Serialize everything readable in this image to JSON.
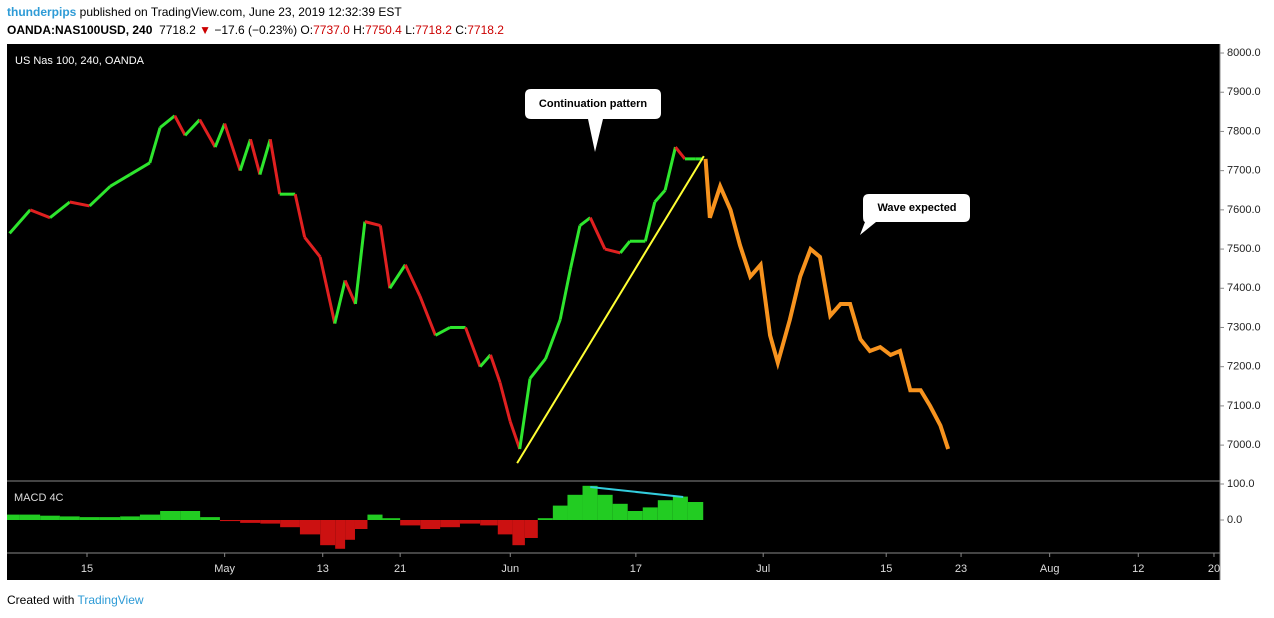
{
  "header": {
    "author": "thunderpips",
    "published": "published on TradingView.com, June 23, 2019 12:32:39 EST",
    "symbol": "OANDA:NAS100USD, 240",
    "last": "7718.2",
    "arrow": "▼",
    "change": "−17.6 (−0.23%)",
    "open_label": "O:",
    "open": "7737.0",
    "high_label": "H:",
    "high": "7750.4",
    "low_label": "L:",
    "low": "7718.2",
    "close_label": "C:",
    "close": "7718.2"
  },
  "footer": {
    "created": "Created with",
    "brand": "TradingView"
  },
  "chart_data": [
    {
      "type": "line",
      "title": "US Nas 100, 240, OANDA",
      "xlim": [
        -9.3,
        131.7
      ],
      "ylim": [
        6911,
        8023
      ],
      "xticks": [
        {
          "value": 0,
          "label": "15"
        },
        {
          "value": 16,
          "label": "May"
        },
        {
          "value": 27.4,
          "label": "13"
        },
        {
          "value": 36.4,
          "label": "21"
        },
        {
          "value": 49.2,
          "label": "Jun"
        },
        {
          "value": 63.8,
          "label": "17"
        },
        {
          "value": 78.6,
          "label": "Jul"
        },
        {
          "value": 92.9,
          "label": "15"
        },
        {
          "value": 101.6,
          "label": "23"
        },
        {
          "value": 111.9,
          "label": "Aug"
        },
        {
          "value": 122.2,
          "label": "12"
        },
        {
          "value": 131,
          "label": "20"
        }
      ],
      "yticks": [
        {
          "value": 7000,
          "label": "7000.0"
        },
        {
          "value": 7100,
          "label": "7100.0"
        },
        {
          "value": 7200,
          "label": "7200.0"
        },
        {
          "value": 7300,
          "label": "7300.0"
        },
        {
          "value": 7400,
          "label": "7400.0"
        },
        {
          "value": 7500,
          "label": "7500.0"
        },
        {
          "value": 7600,
          "label": "7600.0"
        },
        {
          "value": 7700,
          "label": "7700.0"
        },
        {
          "value": 7800,
          "label": "7800.0"
        },
        {
          "value": 7900,
          "label": "7900.0"
        },
        {
          "value": 8000,
          "label": "8000.0"
        }
      ],
      "series": [
        {
          "up_color": "#2ee62e",
          "down_color": "#e02020",
          "x": [
            -9.0,
            -6.6,
            -4.3,
            -2.0,
            0.3,
            2.7,
            5.0,
            7.3,
            8.5,
            10.2,
            11.4,
            13.1,
            14.9,
            16.0,
            17.8,
            19.0,
            20.1,
            21.3,
            22.4,
            24.2,
            25.3,
            27.1,
            28.8,
            30.0,
            31.2,
            32.3,
            34.1,
            35.2,
            37.0,
            38.7,
            40.5,
            42.2,
            44.0,
            45.7,
            46.9,
            48.0,
            49.2,
            50.3,
            51.5,
            53.3,
            55.0,
            56.2,
            57.3,
            58.5,
            60.2,
            62.0,
            63.1,
            64.9,
            66.0,
            67.2,
            68.4,
            69.5,
            70.7,
            71.6
          ],
          "values": [
            7540,
            7600,
            7580,
            7620,
            7610,
            7660,
            7690,
            7720,
            7810,
            7840,
            7790,
            7830,
            7760,
            7820,
            7700,
            7780,
            7690,
            7780,
            7640,
            7640,
            7530,
            7480,
            7310,
            7420,
            7360,
            7570,
            7560,
            7400,
            7460,
            7380,
            7280,
            7300,
            7300,
            7200,
            7230,
            7160,
            7060,
            6990,
            7170,
            7220,
            7320,
            7450,
            7560,
            7580,
            7500,
            7490,
            7520,
            7520,
            7620,
            7650,
            7760,
            7730,
            7730,
            7730
          ]
        },
        {
          "color": "#f7931e",
          "x": [
            71.9,
            72.4,
            73.6,
            74.8,
            75.9,
            77.1,
            78.3,
            79.4,
            80.3,
            81.7,
            82.9,
            84.1,
            85.2,
            86.4,
            87.6,
            88.7,
            89.9,
            91.0,
            92.2,
            93.4,
            94.5,
            95.7,
            96.9,
            98.0,
            99.2,
            100.1
          ],
          "values": [
            7730,
            7580,
            7660,
            7600,
            7510,
            7430,
            7460,
            7280,
            7210,
            7320,
            7430,
            7500,
            7480,
            7330,
            7360,
            7360,
            7270,
            7240,
            7250,
            7230,
            7240,
            7140,
            7140,
            7100,
            7050,
            6990
          ]
        }
      ],
      "trendline": {
        "color": "#ffff33",
        "x": [
          50.0,
          71.7
        ],
        "values": [
          6954,
          7737
        ]
      },
      "annotations": [
        {
          "text": "Continuation pattern"
        },
        {
          "text": "Wave expected"
        }
      ]
    },
    {
      "type": "bar",
      "title": "MACD 4C",
      "ylim": [
        -91.7,
        105.6
      ],
      "yticks": [
        {
          "value": 0,
          "label": "0.0"
        },
        {
          "value": 100,
          "label": "100.0"
        }
      ],
      "up_color": "#22cc22",
      "down_color": "#cc1111",
      "x": [
        -9.0,
        -6.6,
        -4.3,
        -2.0,
        0.3,
        2.7,
        5.0,
        7.3,
        9.7,
        12.0,
        14.3,
        16.6,
        19.0,
        21.3,
        23.6,
        25.9,
        28.3,
        29.4,
        30.6,
        31.7,
        33.5,
        35.2,
        37.6,
        39.9,
        42.2,
        44.5,
        46.9,
        48.6,
        50.3,
        51.5,
        53.3,
        55.0,
        56.7,
        58.5,
        60.2,
        62.0,
        63.7,
        65.5,
        67.2,
        69.0,
        70.7
      ],
      "values": [
        15,
        15,
        12,
        10,
        8,
        8,
        10,
        15,
        25,
        25,
        8,
        -3,
        -8,
        -10,
        -20,
        -40,
        -70,
        -80,
        -55,
        -25,
        15,
        5,
        -15,
        -25,
        -20,
        -10,
        -15,
        -40,
        -70,
        -50,
        5,
        40,
        70,
        95,
        70,
        45,
        25,
        35,
        55,
        65,
        50
      ],
      "divergence": {
        "color": "#33ccdd",
        "x": [
          58.5,
          69.3
        ],
        "values": [
          91.7,
          63.9
        ]
      }
    }
  ]
}
